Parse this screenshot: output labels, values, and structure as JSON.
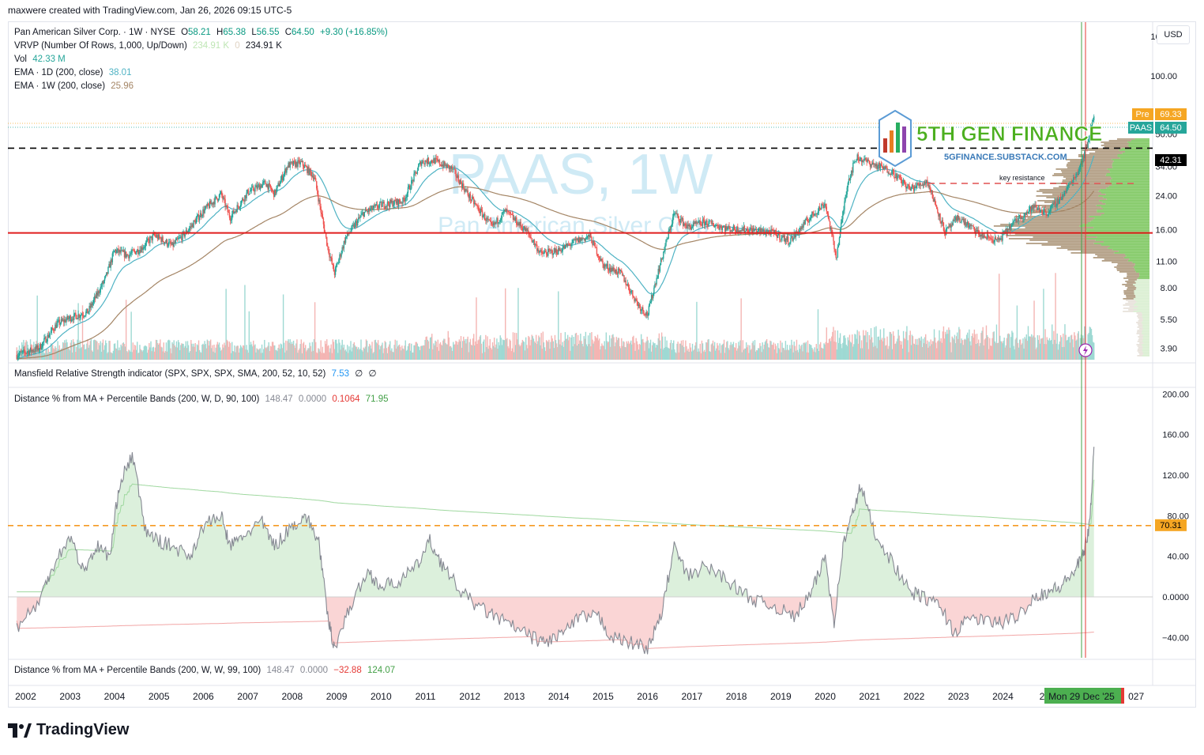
{
  "header": {
    "author_line": "maxwere created with TradingView.com, Jan 26, 2026 09:15 UTC-5"
  },
  "currency_button": "USD",
  "main_legend": {
    "line1": {
      "name": "Pan American Silver Corp. · 1W · NYSE",
      "o_label": "O",
      "o_val": "58.21",
      "h_label": "H",
      "h_val": "65.38",
      "l_label": "L",
      "l_val": "56.55",
      "c_label": "C",
      "c_val": "64.50",
      "chg": "+9.30 (+16.85%)"
    },
    "line2": {
      "name": "VRVP (Number Of Rows, 1,000, Up/Down)",
      "v1": "234.91 K",
      "v2": "0",
      "v3": "234.91 K"
    },
    "line3": {
      "name": "Vol",
      "v1": "42.33 M"
    },
    "line4": {
      "name": "EMA · 1D (200, close)",
      "v1": "38.01"
    },
    "line5": {
      "name": "EMA · 1W (200, close)",
      "v1": "25.96"
    }
  },
  "watermark": {
    "ticker": "PAAS, 1W",
    "company": "Pan American Silver Corp."
  },
  "logo": {
    "name": "5TH GEN FINANCE",
    "url": "5GFINANCE.SUBSTACK.COM"
  },
  "annotations": {
    "key_resistance": "key resistance"
  },
  "price_axis": {
    "ticks": [
      "160.00",
      "100.00",
      "50.00",
      "34.00",
      "24.00",
      "16.00",
      "11.00",
      "8.00",
      "5.50",
      "3.90"
    ],
    "pre_label": "Pre",
    "pre_value": "69.33",
    "ticker_label": "PAAS",
    "last_value": "64.50",
    "line_value": "42.31"
  },
  "mansfield_legend": {
    "name": "Mansfield Relative Strength indicator (SPX, SPX, SPX, SMA, 200, 52, 10, 52)",
    "v1": "7.53",
    "v2": "∅",
    "v3": "∅"
  },
  "dist1_legend": {
    "name": "Distance % from MA + Percentile Bands (200, W, D, 90, 100)",
    "v1": "148.47",
    "v2": "0.0000",
    "v3": "0.1064",
    "v4": "71.95"
  },
  "dist_axis": {
    "ticks": [
      "200.00",
      "160.00",
      "120.00",
      "80.00",
      "40.00",
      "0.0000",
      "−40.00"
    ],
    "line_value": "70.31"
  },
  "dist2_legend": {
    "name": "Distance % from MA + Percentile Bands (200, W, W, 99, 100)",
    "v1": "148.47",
    "v2": "0.0000",
    "v3": "−32.88",
    "v4": "124.07"
  },
  "time_axis": {
    "years": [
      "2002",
      "2003",
      "2004",
      "2005",
      "2006",
      "2007",
      "2008",
      "2009",
      "2010",
      "2011",
      "2012",
      "2013",
      "2014",
      "2015",
      "2016",
      "2017",
      "2018",
      "2019",
      "2020",
      "2021",
      "2022",
      "2023",
      "2024",
      "202",
      "027"
    ],
    "cursor_label": "Mon 29 Dec '25"
  },
  "footer": {
    "brand": "TradingView"
  },
  "colors": {
    "up": "#26a69a",
    "down": "#ef5350",
    "ema1d": "#4fb3c4",
    "ema1w": "#a48565",
    "hline_red": "#e01e1e",
    "hline_dash_orange": "#f59a23",
    "vrvp_green": "#6cc04a",
    "vrvp_tan": "#a58d6e",
    "dist_line": "#868993",
    "pos_fill": "#d8eed8",
    "neg_fill": "#f9d0d0"
  },
  "chart_data": [
    {
      "type": "candlestick",
      "title": "PAAS, 1W",
      "x_range": [
        2001.6,
        2027.3
      ],
      "y_scale": "log",
      "ylim": [
        3.4,
        190
      ],
      "y_ticks": [
        160,
        100,
        50,
        34,
        24,
        16,
        11,
        8,
        5.5,
        3.9
      ],
      "price_path": [
        [
          2001.8,
          3.6
        ],
        [
          2002.3,
          3.9
        ],
        [
          2002.7,
          5.2
        ],
        [
          2003.0,
          5.6
        ],
        [
          2003.4,
          6.0
        ],
        [
          2003.8,
          9.0
        ],
        [
          2004.0,
          12.5
        ],
        [
          2004.3,
          11.8
        ],
        [
          2004.6,
          12.8
        ],
        [
          2004.9,
          15.0
        ],
        [
          2005.3,
          13.2
        ],
        [
          2005.6,
          15.4
        ],
        [
          2006.0,
          20.0
        ],
        [
          2006.4,
          24.5
        ],
        [
          2006.6,
          18.5
        ],
        [
          2007.0,
          25.0
        ],
        [
          2007.4,
          28.0
        ],
        [
          2007.6,
          24.5
        ],
        [
          2007.9,
          34.5
        ],
        [
          2008.2,
          35.5
        ],
        [
          2008.5,
          30.0
        ],
        [
          2008.8,
          13.0
        ],
        [
          2008.95,
          9.5
        ],
        [
          2009.2,
          14.5
        ],
        [
          2009.6,
          19.5
        ],
        [
          2010.0,
          21.5
        ],
        [
          2010.5,
          22.5
        ],
        [
          2010.9,
          36.0
        ],
        [
          2011.2,
          36.5
        ],
        [
          2011.6,
          33.0
        ],
        [
          2012.0,
          23.5
        ],
        [
          2012.5,
          16.5
        ],
        [
          2012.8,
          20.0
        ],
        [
          2013.3,
          15.5
        ],
        [
          2013.6,
          12.0
        ],
        [
          2014.0,
          12.5
        ],
        [
          2014.4,
          14.0
        ],
        [
          2014.7,
          14.8
        ],
        [
          2015.0,
          10.5
        ],
        [
          2015.4,
          9.5
        ],
        [
          2015.8,
          6.5
        ],
        [
          2016.0,
          5.8
        ],
        [
          2016.2,
          9.0
        ],
        [
          2016.6,
          19.5
        ],
        [
          2016.9,
          16.5
        ],
        [
          2017.3,
          17.5
        ],
        [
          2017.8,
          16.2
        ],
        [
          2018.3,
          16.0
        ],
        [
          2018.8,
          15.5
        ],
        [
          2019.2,
          14.0
        ],
        [
          2019.7,
          19.0
        ],
        [
          2020.0,
          22.0
        ],
        [
          2020.25,
          11.5
        ],
        [
          2020.5,
          28.0
        ],
        [
          2020.7,
          38.0
        ],
        [
          2021.0,
          35.5
        ],
        [
          2021.5,
          32.0
        ],
        [
          2021.9,
          26.0
        ],
        [
          2022.3,
          28.5
        ],
        [
          2022.7,
          15.5
        ],
        [
          2023.0,
          18.5
        ],
        [
          2023.5,
          15.0
        ],
        [
          2023.9,
          14.0
        ],
        [
          2024.3,
          18.0
        ],
        [
          2024.7,
          21.0
        ],
        [
          2025.0,
          19.5
        ],
        [
          2025.4,
          25.0
        ],
        [
          2025.7,
          32.5
        ],
        [
          2025.9,
          44.0
        ],
        [
          2026.05,
          64.5
        ]
      ],
      "last": {
        "open": 58.21,
        "high": 65.38,
        "low": 56.55,
        "close": 64.5
      },
      "horizontal_lines": [
        15.4,
        42.31
      ],
      "annotation": "key resistance"
    },
    {
      "type": "line",
      "name": "Distance % from MA + Percentile Bands (200, W, D, 90, 100)",
      "x_range": [
        2001.6,
        2027.3
      ],
      "ylim": [
        -60,
        205
      ],
      "y_ticks": [
        200,
        160,
        120,
        80,
        40,
        0,
        -40
      ],
      "x": [
        2001.8,
        2002.3,
        2002.6,
        2003.0,
        2003.3,
        2003.6,
        2003.9,
        2004.1,
        2004.4,
        2004.7,
        2005.0,
        2005.3,
        2005.7,
        2006.0,
        2006.4,
        2006.6,
        2006.9,
        2007.3,
        2007.6,
        2008.0,
        2008.3,
        2008.6,
        2008.8,
        2008.95,
        2009.3,
        2009.7,
        2010.0,
        2010.4,
        2010.8,
        2011.1,
        2011.4,
        2011.8,
        2012.2,
        2012.6,
        2013.0,
        2013.4,
        2013.7,
        2014.1,
        2014.5,
        2014.9,
        2015.2,
        2015.6,
        2016.0,
        2016.3,
        2016.6,
        2016.9,
        2017.3,
        2017.7,
        2018.1,
        2018.5,
        2018.9,
        2019.3,
        2019.7,
        2020.0,
        2020.2,
        2020.4,
        2020.6,
        2020.8,
        2021.1,
        2021.5,
        2021.9,
        2022.2,
        2022.6,
        2022.9,
        2023.3,
        2023.7,
        2024.0,
        2024.3,
        2024.7,
        2025.0,
        2025.3,
        2025.6,
        2025.8,
        2025.95,
        2026.05
      ],
      "y": [
        -30,
        -5,
        30,
        60,
        25,
        50,
        40,
        110,
        140,
        65,
        55,
        50,
        40,
        70,
        80,
        50,
        60,
        75,
        50,
        70,
        80,
        55,
        -20,
        -50,
        -10,
        25,
        10,
        15,
        30,
        55,
        30,
        5,
        -10,
        -20,
        -30,
        -40,
        -45,
        -35,
        -20,
        -20,
        -40,
        -45,
        -50,
        -20,
        50,
        20,
        30,
        20,
        5,
        -5,
        -10,
        -20,
        5,
        40,
        -25,
        50,
        80,
        110,
        65,
        35,
        5,
        0,
        -10,
        -35,
        -20,
        -25,
        -25,
        -20,
        0,
        5,
        10,
        25,
        40,
        70,
        148
      ]
    }
  ]
}
